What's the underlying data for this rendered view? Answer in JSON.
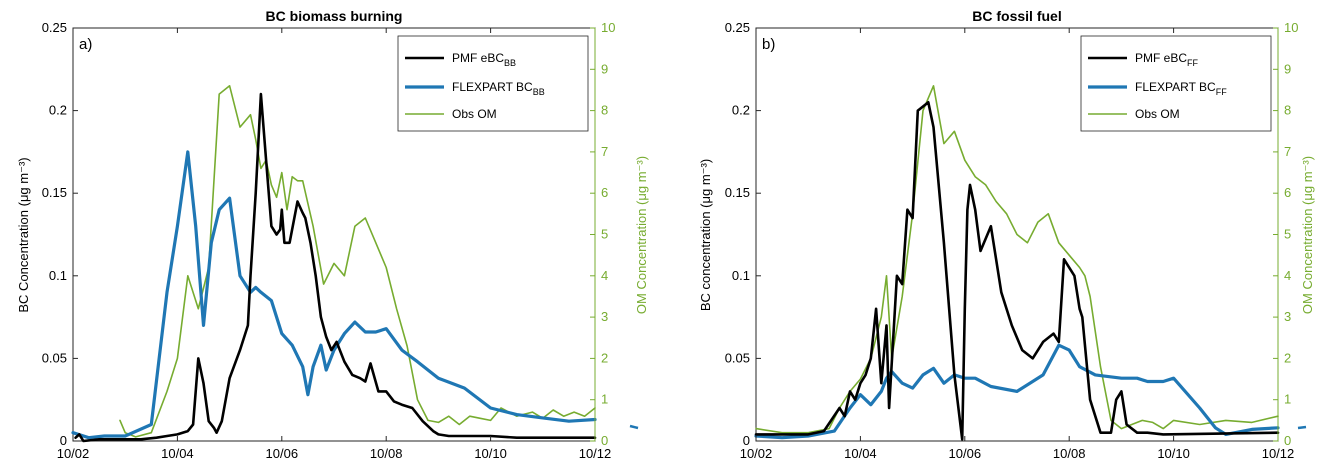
{
  "colors": {
    "pmf": "#000000",
    "flexpart": "#1f77b4",
    "obs": "#77ac30",
    "axis": "#262626"
  },
  "chart_data": [
    {
      "type": "line",
      "title": "BC biomass burning",
      "panel_label": "a)",
      "xlabel": "",
      "xlim": [
        "10/02",
        "10/12"
      ],
      "x_ticks": [
        "10/02",
        "10/04",
        "10/06",
        "10/08",
        "10/10",
        "10/12"
      ],
      "ylabel": "BC Concentration (μg m⁻³)",
      "ylim": [
        0,
        0.25
      ],
      "y_ticks": [
        "0",
        "0.05",
        "0.1",
        "0.15",
        "0.2",
        "0.25"
      ],
      "y2label": "OM Concentration (μg m⁻³)",
      "y2lim": [
        0,
        10
      ],
      "y2_ticks": [
        "0",
        "1",
        "2",
        "3",
        "4",
        "5",
        "6",
        "7",
        "8",
        "9",
        "10"
      ],
      "legend_location": "top-right",
      "series": [
        {
          "name": "PMF eBC_BB",
          "legend_main": "PMF eBC",
          "legend_sub": "BB",
          "axis": "left",
          "color": "#000000",
          "width": 2.6,
          "x": [
            0.05,
            0.12,
            0.2,
            0.5,
            1.0,
            1.3,
            1.6,
            1.8,
            2.0,
            2.2,
            2.3,
            2.4,
            2.5,
            2.6,
            2.7,
            2.75,
            2.85,
            3.0,
            3.2,
            3.35,
            3.4,
            3.5,
            3.6,
            3.7,
            3.8,
            3.9,
            3.97,
            4.0,
            4.05,
            4.15,
            4.3,
            4.4,
            4.45,
            4.55,
            4.65,
            4.75,
            4.85,
            4.95,
            5.05,
            5.2,
            5.35,
            5.5,
            5.6,
            5.7,
            5.85,
            6.0,
            6.15,
            6.3,
            6.5,
            6.7,
            6.9,
            7.0,
            7.2,
            7.5,
            8.0,
            8.5,
            9.0,
            10.0
          ],
          "y": [
            0.002,
            0.004,
            0.0,
            0.001,
            0.001,
            0.001,
            0.002,
            0.003,
            0.004,
            0.006,
            0.01,
            0.05,
            0.035,
            0.012,
            0.008,
            0.005,
            0.012,
            0.038,
            0.055,
            0.07,
            0.1,
            0.15,
            0.21,
            0.17,
            0.13,
            0.125,
            0.128,
            0.14,
            0.12,
            0.12,
            0.145,
            0.138,
            0.135,
            0.12,
            0.1,
            0.075,
            0.063,
            0.055,
            0.06,
            0.048,
            0.04,
            0.038,
            0.036,
            0.047,
            0.03,
            0.03,
            0.024,
            0.022,
            0.02,
            0.012,
            0.006,
            0.004,
            0.003,
            0.003,
            0.003,
            0.002,
            0.002,
            0.002
          ]
        },
        {
          "name": "FLEXPART BC_BB",
          "legend_main": "FLEXPART BC",
          "legend_sub": "BB",
          "axis": "left",
          "color": "#1f77b4",
          "width": 3.2,
          "x": [
            0.0,
            0.3,
            0.6,
            1.0,
            1.5,
            1.8,
            2.0,
            2.2,
            2.35,
            2.5,
            2.65,
            2.8,
            3.0,
            3.2,
            3.4,
            3.5,
            3.6,
            3.8,
            4.0,
            4.2,
            4.4,
            4.5,
            4.6,
            4.75,
            4.85,
            5.0,
            5.2,
            5.4,
            5.6,
            5.8,
            6.0,
            6.3,
            6.6,
            7.0,
            7.5,
            8.0,
            8.5,
            9.0,
            9.5,
            10.0
          ],
          "y": [
            0.005,
            0.002,
            0.003,
            0.003,
            0.01,
            0.09,
            0.13,
            0.175,
            0.13,
            0.07,
            0.12,
            0.14,
            0.147,
            0.1,
            0.09,
            0.093,
            0.09,
            0.085,
            0.065,
            0.058,
            0.045,
            0.028,
            0.045,
            0.058,
            0.043,
            0.055,
            0.065,
            0.072,
            0.066,
            0.066,
            0.068,
            0.055,
            0.048,
            0.038,
            0.032,
            0.02,
            0.016,
            0.014,
            0.012,
            0.013
          ]
        },
        {
          "name": "Obs OM",
          "legend_main": "Obs OM",
          "legend_sub": "",
          "axis": "right",
          "color": "#77ac30",
          "width": 1.6,
          "x": [
            0.9,
            1.0,
            1.2,
            1.5,
            1.8,
            2.0,
            2.2,
            2.4,
            2.6,
            2.8,
            3.0,
            3.2,
            3.4,
            3.5,
            3.6,
            3.7,
            3.8,
            3.9,
            4.0,
            4.1,
            4.2,
            4.3,
            4.4,
            4.6,
            4.8,
            5.0,
            5.2,
            5.4,
            5.6,
            5.8,
            6.0,
            6.2,
            6.4,
            6.6,
            6.8,
            7.0,
            7.2,
            7.4,
            7.6,
            7.8,
            8.0,
            8.2,
            8.5,
            8.8,
            9.0,
            9.2,
            9.4,
            9.6,
            9.8,
            10.0
          ],
          "y": [
            0.5,
            0.2,
            0.1,
            0.2,
            1.2,
            2.0,
            4.0,
            3.2,
            4.2,
            8.4,
            8.6,
            7.6,
            7.9,
            7.3,
            6.6,
            6.8,
            6.2,
            5.9,
            6.5,
            5.6,
            6.4,
            6.3,
            6.3,
            5.2,
            3.8,
            4.3,
            4.0,
            5.2,
            5.4,
            4.8,
            4.2,
            3.2,
            2.3,
            1.0,
            0.5,
            0.45,
            0.6,
            0.4,
            0.6,
            0.55,
            0.5,
            0.8,
            0.6,
            0.7,
            0.55,
            0.75,
            0.6,
            0.7,
            0.6,
            0.8
          ]
        }
      ]
    },
    {
      "type": "line",
      "title": "BC fossil fuel",
      "panel_label": "b)",
      "xlabel": "",
      "xlim": [
        "10/02",
        "10/12"
      ],
      "x_ticks": [
        "10/02",
        "10/04",
        "10/06",
        "10/08",
        "10/10",
        "10/12"
      ],
      "ylabel": "BC concentration (μg m⁻³)",
      "ylim": [
        0,
        0.25
      ],
      "y_ticks": [
        "0",
        "0.05",
        "0.1",
        "0.15",
        "0.2",
        "0.25"
      ],
      "y2label": "OM Concentration (μg m⁻³)",
      "y2lim": [
        0,
        10
      ],
      "y2_ticks": [
        "0",
        "1",
        "2",
        "3",
        "4",
        "5",
        "6",
        "7",
        "8",
        "9",
        "10"
      ],
      "legend_location": "top-right",
      "series": [
        {
          "name": "PMF eBC_FF",
          "legend_main": "PMF eBC",
          "legend_sub": "FF",
          "axis": "left",
          "color": "#000000",
          "width": 2.6,
          "x": [
            0.0,
            0.5,
            1.0,
            1.3,
            1.6,
            1.7,
            1.8,
            1.9,
            2.0,
            2.1,
            2.2,
            2.3,
            2.4,
            2.5,
            2.55,
            2.7,
            2.8,
            2.9,
            3.0,
            3.1,
            3.3,
            3.4,
            3.6,
            3.8,
            3.95,
            4.0,
            4.05,
            4.1,
            4.2,
            4.3,
            4.5,
            4.7,
            4.9,
            5.1,
            5.3,
            5.5,
            5.7,
            5.8,
            5.9,
            6.1,
            6.2,
            6.25,
            6.4,
            6.6,
            6.8,
            6.9,
            7.0,
            7.1,
            7.3,
            7.5,
            7.8,
            10.0
          ],
          "y": [
            0.004,
            0.004,
            0.004,
            0.006,
            0.02,
            0.015,
            0.03,
            0.025,
            0.035,
            0.04,
            0.05,
            0.08,
            0.035,
            0.07,
            0.02,
            0.1,
            0.095,
            0.14,
            0.135,
            0.2,
            0.205,
            0.19,
            0.12,
            0.04,
            0.001,
            0.08,
            0.14,
            0.155,
            0.14,
            0.115,
            0.13,
            0.09,
            0.07,
            0.055,
            0.05,
            0.06,
            0.065,
            0.06,
            0.11,
            0.1,
            0.08,
            0.075,
            0.025,
            0.005,
            0.005,
            0.025,
            0.03,
            0.01,
            0.005,
            0.005,
            0.004,
            0.005
          ]
        },
        {
          "name": "FLEXPART BC_FF",
          "legend_main": "FLEXPART BC",
          "legend_sub": "FF",
          "axis": "left",
          "color": "#1f77b4",
          "width": 3.2,
          "x": [
            0.0,
            0.5,
            1.0,
            1.5,
            1.8,
            2.0,
            2.2,
            2.4,
            2.5,
            2.6,
            2.8,
            3.0,
            3.2,
            3.4,
            3.6,
            3.8,
            4.0,
            4.2,
            4.5,
            5.0,
            5.5,
            5.8,
            6.0,
            6.2,
            6.5,
            7.0,
            7.3,
            7.5,
            7.8,
            8.0,
            8.5,
            8.8,
            9.0,
            9.5,
            10.0
          ],
          "y": [
            0.003,
            0.002,
            0.003,
            0.006,
            0.02,
            0.028,
            0.022,
            0.03,
            0.038,
            0.042,
            0.035,
            0.032,
            0.04,
            0.044,
            0.035,
            0.04,
            0.038,
            0.038,
            0.033,
            0.03,
            0.04,
            0.058,
            0.055,
            0.045,
            0.04,
            0.038,
            0.038,
            0.036,
            0.036,
            0.038,
            0.02,
            0.008,
            0.004,
            0.007,
            0.008
          ]
        },
        {
          "name": "Obs OM",
          "legend_main": "Obs OM",
          "legend_sub": "",
          "axis": "right",
          "color": "#77ac30",
          "width": 1.6,
          "x": [
            0.0,
            0.5,
            1.0,
            1.4,
            1.6,
            1.8,
            2.0,
            2.2,
            2.4,
            2.5,
            2.6,
            2.8,
            3.0,
            3.2,
            3.4,
            3.6,
            3.8,
            4.0,
            4.2,
            4.4,
            4.6,
            4.8,
            5.0,
            5.2,
            5.4,
            5.6,
            5.8,
            6.0,
            6.2,
            6.3,
            6.4,
            6.6,
            6.8,
            7.0,
            7.2,
            7.4,
            7.6,
            7.8,
            8.0,
            8.5,
            9.0,
            9.5,
            10.0
          ],
          "y": [
            0.3,
            0.2,
            0.2,
            0.3,
            0.8,
            1.2,
            1.5,
            2.0,
            3.0,
            4.0,
            2.0,
            3.5,
            5.5,
            8.0,
            8.6,
            7.2,
            7.5,
            6.8,
            6.4,
            6.2,
            5.8,
            5.5,
            5.0,
            4.8,
            5.3,
            5.5,
            4.8,
            4.5,
            4.2,
            4.0,
            3.5,
            1.8,
            0.5,
            0.3,
            0.4,
            0.5,
            0.45,
            0.3,
            0.5,
            0.4,
            0.5,
            0.45,
            0.6
          ]
        }
      ]
    }
  ]
}
